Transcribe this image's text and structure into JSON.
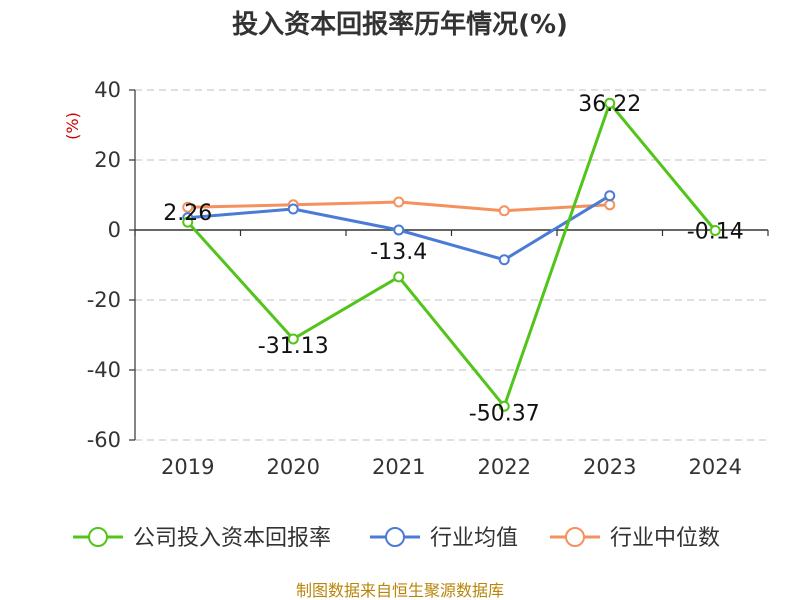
{
  "chart_data": {
    "type": "line",
    "title": "投入资本回报率历年情况(%)",
    "ylabel": "(%)",
    "categories": [
      "2019",
      "2020",
      "2021",
      "2022",
      "2023",
      "2024"
    ],
    "ylim": [
      -60,
      40
    ],
    "yticks": [
      40,
      20,
      0,
      -20,
      -40,
      -60
    ],
    "grid": true,
    "legend_position": "bottom",
    "series": [
      {
        "name": "公司投入资本回报率",
        "color": "#52c41a",
        "values": [
          2.26,
          -31.13,
          -13.4,
          -50.37,
          36.22,
          -0.14
        ],
        "labels": [
          "2.26",
          "-31.13",
          "-13.4",
          "-50.37",
          "36.22",
          "-0.14"
        ]
      },
      {
        "name": "行业均值",
        "color": "#4a7bd6",
        "values": [
          3.5,
          6.0,
          0.0,
          -8.5,
          9.8,
          null
        ]
      },
      {
        "name": "行业中位数",
        "color": "#f4915f",
        "values": [
          6.5,
          7.2,
          8.0,
          5.5,
          7.2,
          null
        ]
      }
    ],
    "source": "制图数据来自恒生聚源数据库"
  }
}
